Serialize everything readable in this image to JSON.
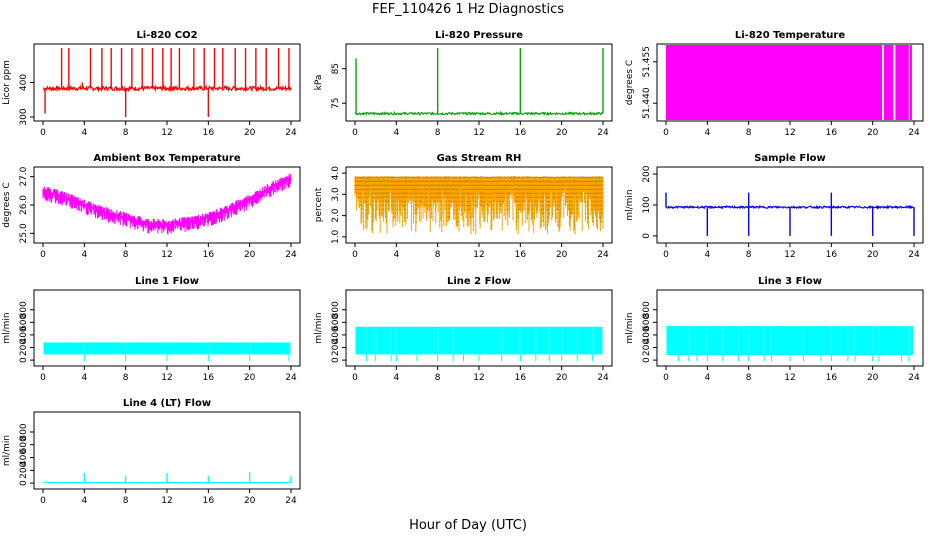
{
  "title": "FEF_110426  1 Hz Diagnostics",
  "xlabel": "Hour of Day (UTC)",
  "colors": {
    "co2": "#ff0000",
    "pressure": "#00aa00",
    "licor_temp": "#ff00ff",
    "box_temp": "#ff00ff",
    "rh": "#ffa500",
    "rh_marker": "#8b8b00",
    "sample_flow": "#0000ff",
    "line_flow": "#00ffff",
    "axis": "#000000"
  },
  "chart_data": [
    {
      "type": "line",
      "title": "Li-820 CO2",
      "ylabel": "Licor ppm",
      "xlim": [
        0,
        24
      ],
      "x_ticks": [
        "0",
        "4",
        "8",
        "12",
        "16",
        "20",
        "24"
      ],
      "ylim": [
        300,
        500
      ],
      "y_ticks": [
        "300",
        "400"
      ],
      "y_tick_values": [
        300,
        400
      ],
      "series": [
        {
          "color": "co2",
          "baseline": 383,
          "noise": 6,
          "spikes": [
            [
              0.2,
              310
            ],
            [
              1.8,
              500
            ],
            [
              2.5,
              500
            ],
            [
              3.8,
              400
            ],
            [
              4.6,
              500
            ],
            [
              5.7,
              500
            ],
            [
              6.6,
              500
            ],
            [
              7.6,
              500
            ],
            [
              8.0,
              300
            ],
            [
              8.6,
              500
            ],
            [
              9.6,
              500
            ],
            [
              10.6,
              500
            ],
            [
              11.6,
              500
            ],
            [
              12.4,
              500
            ],
            [
              13.2,
              500
            ],
            [
              14.6,
              500
            ],
            [
              15.6,
              500
            ],
            [
              16.0,
              300
            ],
            [
              16.6,
              500
            ],
            [
              17.4,
              500
            ],
            [
              18.6,
              500
            ],
            [
              19.6,
              500
            ],
            [
              20.6,
              500
            ],
            [
              21.6,
              500
            ],
            [
              22.8,
              500
            ],
            [
              23.8,
              500
            ]
          ]
        }
      ]
    },
    {
      "type": "line",
      "title": "Li-820 Pressure",
      "ylabel": "kPa",
      "xlim": [
        0,
        24
      ],
      "x_ticks": [
        "0",
        "4",
        "8",
        "12",
        "16",
        "20",
        "24"
      ],
      "ylim": [
        71,
        91
      ],
      "y_ticks": [
        "75",
        "85"
      ],
      "y_tick_values": [
        75,
        85
      ],
      "series": [
        {
          "color": "pressure",
          "baseline": 72,
          "noise": 0.3,
          "spikes": [
            [
              0.1,
              88
            ],
            [
              8.0,
              91
            ],
            [
              16.0,
              91
            ],
            [
              24.0,
              91
            ]
          ]
        }
      ]
    },
    {
      "type": "area",
      "title": "Li-820 Temperature",
      "ylabel": "degrees C",
      "xlim": [
        0,
        24
      ],
      "x_ticks": [
        "0",
        "4",
        "8",
        "12",
        "16",
        "20",
        "24"
      ],
      "ylim": [
        51.435,
        51.46
      ],
      "y_ticks": [
        "51.440",
        "51.455"
      ],
      "y_tick_values": [
        51.44,
        51.455
      ],
      "series": [
        {
          "color": "licor_temp",
          "fill_ranges": [
            [
              0,
              20.9
            ],
            [
              21.1,
              22.0
            ],
            [
              22.2,
              23.5
            ],
            [
              23.6,
              23.8
            ]
          ]
        }
      ]
    },
    {
      "type": "line",
      "title": "Ambient Box Temperature",
      "ylabel": "degrees C",
      "xlim": [
        0,
        24
      ],
      "x_ticks": [
        "0",
        "4",
        "8",
        "12",
        "16",
        "20",
        "24"
      ],
      "ylim": [
        24.8,
        27.2
      ],
      "y_ticks": [
        "25.0",
        "26.0",
        "27.0"
      ],
      "y_tick_values": [
        25.0,
        26.0,
        27.0
      ],
      "series": [
        {
          "color": "box_temp",
          "knots": [
            [
              0,
              26.5
            ],
            [
              2,
              26.3
            ],
            [
              4,
              26.0
            ],
            [
              6,
              25.75
            ],
            [
              8,
              25.55
            ],
            [
              10,
              25.35
            ],
            [
              12,
              25.3
            ],
            [
              14,
              25.4
            ],
            [
              16,
              25.55
            ],
            [
              18,
              25.85
            ],
            [
              20,
              26.2
            ],
            [
              22,
              26.6
            ],
            [
              24,
              26.95
            ]
          ],
          "noise": 0.35
        }
      ]
    },
    {
      "type": "line",
      "title": "Gas Stream RH",
      "ylabel": "percent",
      "xlim": [
        0,
        24
      ],
      "x_ticks": [
        "0",
        "4",
        "8",
        "12",
        "16",
        "20",
        "24"
      ],
      "ylim": [
        0.9,
        4.1
      ],
      "y_ticks": [
        "1.0",
        "2.0",
        "3.0",
        "4.0"
      ],
      "y_tick_values": [
        1.0,
        2.0,
        3.0,
        4.0
      ],
      "series": [
        {
          "color": "rh",
          "top": 3.8,
          "low": 1.0
        }
      ]
    },
    {
      "type": "line",
      "title": "Sample Flow",
      "ylabel": "ml/min",
      "xlim": [
        0,
        24
      ],
      "x_ticks": [
        "0",
        "4",
        "8",
        "12",
        "16",
        "20",
        "24"
      ],
      "ylim": [
        -10,
        210
      ],
      "y_ticks": [
        "0",
        "100",
        "200"
      ],
      "y_tick_values": [
        0,
        100,
        200
      ],
      "series": [
        {
          "color": "sample_flow",
          "baseline": 93,
          "noise": 3,
          "spikes": [
            [
              0.0,
              140
            ],
            [
              4.0,
              0
            ],
            [
              8.0,
              0
            ],
            [
              8.0,
              140
            ],
            [
              12.0,
              0
            ],
            [
              16.0,
              0
            ],
            [
              16.0,
              140
            ],
            [
              20.0,
              0
            ],
            [
              24.0,
              0
            ]
          ]
        }
      ]
    },
    {
      "type": "area",
      "title": "Line 1 Flow",
      "ylabel": "ml/min",
      "xlim": [
        0,
        24
      ],
      "x_ticks": [
        "0",
        "4",
        "8",
        "12",
        "16",
        "20",
        "24"
      ],
      "ylim": [
        -30,
        1050
      ],
      "y_ticks": [
        "0",
        "200",
        "400",
        "600",
        "800"
      ],
      "y_tick_values": [
        0,
        200,
        400,
        600,
        800
      ],
      "series": [
        {
          "color": "line_flow",
          "band": [
            90,
            280
          ],
          "gaps": [
            4.0,
            8.0,
            12.0,
            16.0,
            20.0,
            23.8
          ]
        }
      ]
    },
    {
      "type": "area",
      "title": "Line 2 Flow",
      "ylabel": "ml/min",
      "xlim": [
        0,
        24
      ],
      "x_ticks": [
        "0",
        "4",
        "8",
        "12",
        "16",
        "20",
        "24"
      ],
      "ylim": [
        -30,
        1050
      ],
      "y_ticks": [
        "0",
        "200",
        "400",
        "600",
        "800"
      ],
      "y_tick_values": [
        0,
        200,
        400,
        600,
        800
      ],
      "series": [
        {
          "color": "line_flow",
          "band": [
            90,
            530
          ],
          "gaps": [
            1.1,
            2.0,
            3.5,
            4.0,
            6.0,
            8.0,
            9.5,
            10.5,
            12.0,
            14.2,
            16.0,
            17.5,
            18.8,
            20.0,
            21.5,
            23.0
          ]
        }
      ]
    },
    {
      "type": "area",
      "title": "Line 3 Flow",
      "ylabel": "ml/min",
      "xlim": [
        0,
        24
      ],
      "x_ticks": [
        "0",
        "4",
        "8",
        "12",
        "16",
        "20",
        "24"
      ],
      "ylim": [
        -30,
        1050
      ],
      "y_ticks": [
        "0",
        "200",
        "400",
        "600",
        "800"
      ],
      "y_tick_values": [
        0,
        200,
        400,
        600,
        800
      ],
      "series": [
        {
          "color": "line_flow",
          "band": [
            80,
            540
          ],
          "gaps": [
            1.2,
            2.2,
            3.0,
            4.0,
            5.5,
            7.0,
            8.0,
            9.5,
            10.2,
            12.0,
            13.3,
            15.0,
            16.0,
            17.6,
            18.3,
            20.0,
            20.6,
            22.8,
            23.5
          ]
        }
      ]
    },
    {
      "type": "line",
      "title": "Line 4 (LT) Flow",
      "ylabel": "ml/min",
      "xlim": [
        0,
        24
      ],
      "x_ticks": [
        "0",
        "4",
        "8",
        "12",
        "16",
        "20",
        "24"
      ],
      "ylim": [
        -30,
        1050
      ],
      "y_ticks": [
        "0",
        "200",
        "400",
        "600",
        "800"
      ],
      "y_tick_values": [
        0,
        200,
        400,
        600,
        800
      ],
      "series": [
        {
          "color": "line_flow",
          "baseline": 8,
          "noise": 2,
          "spikes": [
            [
              4.0,
              160
            ],
            [
              8.0,
              120
            ],
            [
              12.0,
              160
            ],
            [
              16.0,
              110
            ],
            [
              20.0,
              170
            ],
            [
              24.0,
              120
            ]
          ]
        }
      ]
    }
  ]
}
